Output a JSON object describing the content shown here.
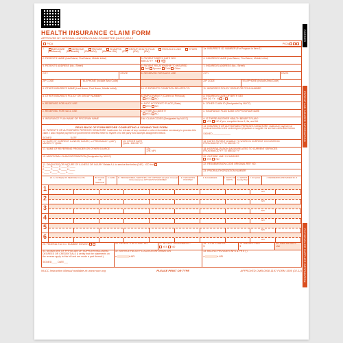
{
  "title": "HEALTH INSURANCE CLAIM FORM",
  "subtitle": "APPROVED BY NATIONAL UNIFORM CLAIM COMMITTEE (NUCC) 02/12",
  "pica": "PICA",
  "tabs": {
    "carrier": "CARRIER",
    "patient": "PATIENT AND INSURED INFORMATION",
    "physician": "PHYSICIAN OR SUPPLIER INFORMATION"
  },
  "box1": {
    "label": "1.",
    "opts": [
      "MEDICARE",
      "MEDICAID",
      "TRICARE",
      "CHAMPVA",
      "GROUP HEALTH PLAN",
      "FECA BLK LUNG",
      "OTHER"
    ],
    "subs": [
      "(Medicare#)",
      "(Medicaid#)",
      "(ID#/DoD#)",
      "(Member ID#)",
      "(ID#)",
      "(ID#)",
      "(ID#)"
    ]
  },
  "box1a": "1a. INSURED'S I.D. NUMBER (For Program in Item 1)",
  "box2": "2. PATIENT'S NAME (Last Name, First Name, Middle Initial)",
  "box3": "3. PATIENT'S BIRTH DATE    SEX",
  "box4": "4. INSURED'S NAME (Last Name, First Name, Middle Initial)",
  "box5": "5. PATIENT'S ADDRESS (No., Street)",
  "box6": "6. PATIENT RELATIONSHIP TO INSURED",
  "box6opts": [
    "Self",
    "Spouse",
    "Child",
    "Other"
  ],
  "box7": "7. INSURED'S ADDRESS (No., Street)",
  "city": "CITY",
  "state": "STATE",
  "zip": "ZIP CODE",
  "phone": "TELEPHONE (Include Area Code)",
  "box8": "8. RESERVED FOR NUCC USE",
  "box9": "9. OTHER INSURED'S NAME (Last Name, First Name, Middle Initial)",
  "box9a": "a. OTHER INSURED'S POLICY OR GROUP NUMBER",
  "box9b": "b. RESERVED FOR NUCC USE",
  "box9c": "c. RESERVED FOR NUCC USE",
  "box9d": "d. INSURANCE PLAN NAME OR PROGRAM NAME",
  "box10": "10. IS PATIENT'S CONDITION RELATED TO:",
  "box10a": "a. EMPLOYMENT? (Current or Previous)",
  "box10b": "b. AUTO ACCIDENT?",
  "box10c": "c. OTHER ACCIDENT?",
  "box10d": "10d. CLAIM CODES (Designated by NUCC)",
  "yn": {
    "yes": "YES",
    "no": "NO",
    "place": "PLACE (State)"
  },
  "box11": "11. INSURED'S POLICY GROUP OR FECA NUMBER",
  "box11a": "a. INSURED'S DATE OF BIRTH    SEX",
  "box11b": "b. OTHER CLAIM ID (Designated by NUCC)",
  "box11c": "c. INSURANCE PLAN NAME OR PROGRAM NAME",
  "box11d": "d. IS THERE ANOTHER HEALTH BENEFIT PLAN?",
  "box11d2": "If yes, complete items 9, 9a, and 9d.",
  "readback": "READ BACK OF FORM BEFORE COMPLETING & SIGNING THIS FORM.",
  "box12": "12. PATIENT'S OR AUTHORIZED PERSON'S SIGNATURE I authorize the release of any medical or other information necessary to process this claim. I also request payment of government benefits either to myself or to the party who accepts assignment below.",
  "box13": "13. INSURED'S OR AUTHORIZED PERSON'S SIGNATURE I authorize payment of medical benefits to the undersigned physician or supplier for services described below.",
  "signed": "SIGNED",
  "date": "DATE",
  "box14": "14. DATE OF CURRENT ILLNESS, INJURY, or PREGNANCY (LMP)",
  "box15": "15. OTHER DATE",
  "box16": "16. DATES PATIENT UNABLE TO WORK IN CURRENT OCCUPATION",
  "box17": "17. NAME OF REFERRING PROVIDER OR OTHER SOURCE",
  "box17a": "17a.",
  "box17b": "17b. NPI",
  "box18": "18. HOSPITALIZATION DATES RELATED TO CURRENT SERVICES",
  "box19": "19. ADDITIONAL CLAIM INFORMATION (Designated by NUCC)",
  "box20": "20. OUTSIDE LAB?    $ CHARGES",
  "box21": "21. DIAGNOSIS OR NATURE OF ILLNESS OR INJURY Relate A-L to service line below (24E)",
  "box21ind": "ICD Ind.",
  "box22": "22. RESUBMISSION CODE    ORIGINAL REF. NO.",
  "box23": "23. PRIOR AUTHORIZATION NUMBER",
  "diag": [
    "A.",
    "B.",
    "C.",
    "D.",
    "E.",
    "F.",
    "G.",
    "H.",
    "I.",
    "J.",
    "K.",
    "L."
  ],
  "svc_cols": [
    "24. A. DATE(S) OF SERVICE From/To",
    "B. PLACE OF SERVICE",
    "C. EMG",
    "D. PROCEDURES, SERVICES, OR SUPPLIES (Explain Unusual Circumstances) CPT/HCPCS  MODIFIER",
    "E. DIAGNOSIS POINTER",
    "F. $ CHARGES",
    "G. DAYS OR UNITS",
    "H. EPSDT Family Plan",
    "I. ID QUAL",
    "J. RENDERING PROVIDER ID. #"
  ],
  "npi": "NPI",
  "box25": "25. FEDERAL TAX I.D. NUMBER    SSN  EIN",
  "box26": "26. PATIENT'S ACCOUNT NO.",
  "box27": "27. ACCEPT ASSIGNMENT?",
  "box28": "28. TOTAL CHARGE",
  "box29": "29. AMOUNT PAID",
  "box30": "30. Rsvd for NUCC Use",
  "box31": "31. SIGNATURE OF PHYSICIAN OR SUPPLIER INCLUDING DEGREES OR CREDENTIALS (I certify that the statements on the reverse apply to this bill and are made a part thereof.)",
  "box32": "32. SERVICE FACILITY LOCATION INFORMATION",
  "box33": "33. BILLING PROVIDER INFO & PH #",
  "footer": {
    "left": "NUCC Instruction Manual available at: www.nucc.org",
    "center": "PLEASE PRINT OR TYPE",
    "right": "APPROVED OMB-0938-1197 FORM 1500 (02-12)"
  },
  "fromto": {
    "from": "FROM",
    "to": "TO",
    "qual": "QUAL."
  },
  "colors": {
    "red": "#d94e1f",
    "shade": "#fce4d6"
  }
}
